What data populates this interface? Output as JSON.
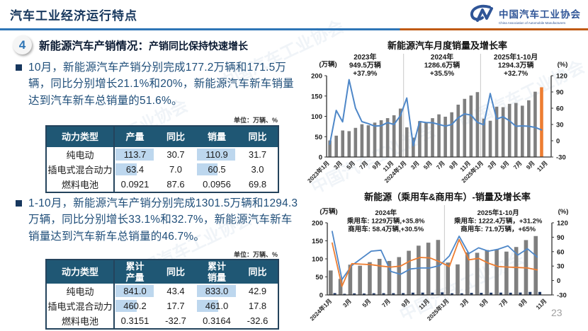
{
  "header": {
    "title": "汽车工业经济运行特点",
    "logo_text": "中国汽车工业协会",
    "logo_subtext": "China Association of Automobile Manufacturers"
  },
  "section": {
    "number": "4",
    "title": "新能源汽车产销情况：",
    "subtitle": "产销同比保持快速增长"
  },
  "bullets": [
    {
      "text": "10月，新能源汽车产销分别完成177.2万辆和171.5万辆，同比分别增长21.1%和20%，新能源汽车新车销量达到汽车新车总销量的51.6%。"
    },
    {
      "text": "1-10月，新能源汽车产销分别完成1301.5万辆和1294.3万辆，同比分别增长33.1%和32.7%，新能源汽车新车销量达到汽车新车总销量的46.7%。"
    }
  ],
  "tables": [
    {
      "unit": "单位：万辆、%",
      "headers": [
        "动力类型",
        "产量",
        "同比",
        "销量",
        "同比"
      ],
      "rows": [
        [
          "纯电动",
          "113.7",
          "30.7",
          "110.9",
          "31.7"
        ],
        [
          "插电式混合动力",
          "63.4",
          "7.0",
          "60.5",
          "3.0"
        ],
        [
          "燃料电池",
          "0.0921",
          "87.6",
          "0.0956",
          "69.8"
        ]
      ],
      "bar_columns": [
        1,
        3
      ],
      "bar_max": 113.7
    },
    {
      "unit": "单位：万辆、%",
      "headers": [
        "动力类型",
        "累计\n产量",
        "同比",
        "累计\n销量",
        "同比"
      ],
      "rows": [
        [
          "纯电动",
          "841.0",
          "43.4",
          "833.0",
          "42.9"
        ],
        [
          "插电式混合动力",
          "460.2",
          "17.7",
          "461.0",
          "17.8"
        ],
        [
          "燃料电池",
          "0.3151",
          "-32.7",
          "0.3164",
          "-32.6"
        ]
      ],
      "bar_columns": [
        1,
        3
      ],
      "bar_max": 841.0
    }
  ],
  "watermark": "中国汽车工业协会",
  "page_number": "23",
  "colors": {
    "accent_blue": "#2E75B6",
    "rule_orange": "#C05A11",
    "text_blue": "#1F4E79",
    "table_header_bg": "#1F5774",
    "databar_blue": "#BDD7EE",
    "bar_gray": "#7F7F7F",
    "bar_orange": "#ED7D31",
    "bar_navy": "#1F3864",
    "line_blue": "#4E87C8",
    "line_orange": "#ED7D31",
    "title_navy": "#17375D"
  },
  "chart_data": [
    {
      "type": "bar+line",
      "title": "新能源汽车月度销量及增长率",
      "left_axis": {
        "label": "(万辆)",
        "min": 0,
        "max": 200,
        "ticks": [
          0,
          50,
          100,
          150,
          200
        ]
      },
      "right_axis": {
        "label": "(%)",
        "min": -30,
        "max": 120,
        "ticks": [
          -30,
          0,
          30,
          60,
          90,
          120
        ]
      },
      "x_tick_labels": [
        "2023年1月",
        "3月",
        "5月",
        "7月",
        "9月",
        "11月",
        "2024年1月",
        "3月",
        "5月",
        "7月",
        "9月",
        "11月",
        "2025年1月",
        "3月",
        "5月",
        "7月",
        "9月",
        "11月"
      ],
      "label_step": 2,
      "slots": 35,
      "dividers": [
        12,
        24
      ],
      "annotations": [
        {
          "center_index": 6,
          "lines": [
            "2023年",
            "949.5万辆",
            "+37.9%"
          ]
        },
        {
          "center_index": 18,
          "lines": [
            "2024年",
            "1286.6万辆",
            "+35.5%"
          ]
        },
        {
          "center_index": 29.5,
          "lines": [
            "2025年1-10月",
            "1294.3万辆",
            "+32.7%"
          ]
        }
      ],
      "bar_series": [
        {
          "name": "月度销量(万辆)",
          "color": "#7F7F7F",
          "highlight_index": 33,
          "highlight_color": "#ED7D31",
          "values": [
            40.8,
            52.5,
            65.3,
            63.6,
            71.7,
            80.6,
            78.0,
            84.6,
            90.4,
            95.6,
            102.6,
            119.1,
            72.9,
            47.7,
            88.3,
            85.0,
            95.5,
            104.9,
            99.1,
            110.0,
            128.7,
            143.0,
            151.2,
            159.6,
            94.4,
            89.2,
            123.7,
            122.6,
            130.7,
            132.9,
            126.2,
            139.5,
            160.6,
            171.5
          ]
        }
      ],
      "line_series": [
        {
          "name": "同比增长率(%)",
          "color": "#4E87C8",
          "values": [
            -6.3,
            55.9,
            34.8,
            112.7,
            60.2,
            35.2,
            31.6,
            27.0,
            27.7,
            33.5,
            30.0,
            46.4,
            78.8,
            -9.2,
            35.3,
            33.5,
            33.3,
            30.1,
            27.0,
            30.0,
            42.3,
            49.6,
            47.4,
            34.0,
            29.4,
            87.1,
            40.1,
            44.2,
            36.9,
            26.7,
            27.4,
            26.8,
            24.6,
            20.0
          ]
        }
      ]
    },
    {
      "type": "bar+line",
      "title": "新能源（乘用车&商用车）-销量及增长率",
      "left_axis": {
        "label": "(万辆)",
        "min": 0,
        "max": 200,
        "ticks": [
          0,
          50,
          100,
          150,
          200
        ]
      },
      "right_axis": {
        "label": "(%)",
        "min": -30,
        "max": 120,
        "ticks": [
          -30,
          0,
          30,
          60,
          90,
          120
        ]
      },
      "x_tick_labels": [
        "2024年1月",
        "3月",
        "5月",
        "7月",
        "9月",
        "11月",
        "2025年1月",
        "3月",
        "5月",
        "7月",
        "9月",
        "11月"
      ],
      "label_step": 2,
      "slots": 23,
      "dividers": [
        12
      ],
      "annotations": [
        {
          "center_index": 6,
          "lines": [
            "2024年",
            "乘用车: 1229万辆,+35.8%",
            "商用车: 58.4万辆,+30.5%"
          ]
        },
        {
          "center_index": 17.5,
          "lines": [
            "2025年1-10月",
            "乘用车: 1222.4万辆，+31.2%",
            "商用车: 71.9万辆，+65%"
          ]
        }
      ],
      "bar_series": [
        {
          "name": "乘用车销量(万辆)",
          "color": "#7F7F7F",
          "values": [
            67.8,
            44.5,
            83.9,
            81.0,
            90.8,
            100.0,
            94.2,
            104.9,
            122.4,
            136.6,
            144.9,
            152.5,
            89.8,
            84.7,
            118.0,
            116.9,
            124.5,
            126.5,
            120.1,
            132.9,
            152.1,
            163.2
          ]
        },
        {
          "name": "商用车销量(万辆)",
          "color": "#1F3864",
          "values": [
            5.1,
            3.2,
            4.4,
            4.0,
            4.7,
            4.9,
            4.9,
            5.1,
            6.3,
            6.4,
            6.3,
            7.1,
            4.6,
            4.5,
            5.7,
            5.8,
            6.2,
            6.4,
            6.1,
            6.6,
            8.3,
            8.3
          ]
        }
      ],
      "line_series": [
        {
          "name": "商用车增长率(%)",
          "color": "#4E87C8",
          "values": [
            102,
            2,
            31,
            46,
            61,
            63,
            19,
            13,
            24,
            26,
            26,
            31,
            51,
            92,
            56,
            68,
            61,
            65,
            72,
            53,
            66,
            49
          ]
        },
        {
          "name": "乘用车增长率(%)",
          "color": "#ED7D31",
          "values": [
            78,
            -12,
            35,
            34,
            33,
            30,
            28,
            30,
            41,
            48,
            47,
            39,
            29,
            85,
            43,
            46,
            36,
            29,
            28,
            27,
            26,
            22
          ]
        }
      ]
    }
  ]
}
